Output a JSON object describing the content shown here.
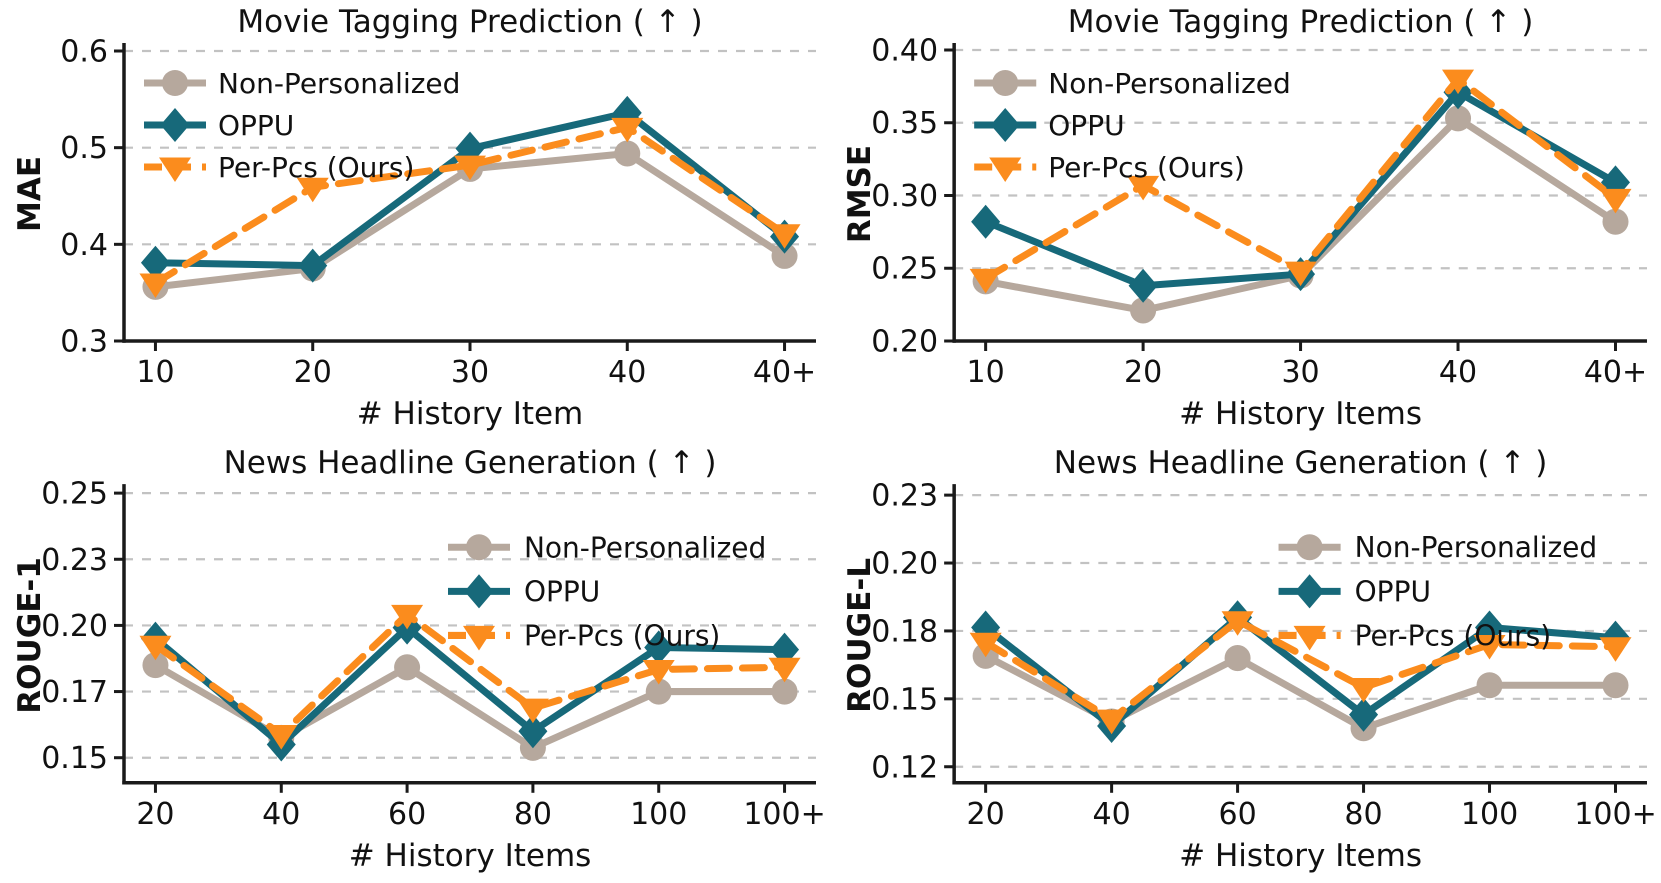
{
  "palette": {
    "non_personalized": "#b6a89d",
    "oppu": "#17697a",
    "per_pcs": "#fb8c1d",
    "grid": "#c2c2c2",
    "axis": "#1a1a1a",
    "text": "#111111",
    "background": "#ffffff"
  },
  "series_meta": [
    {
      "key": "non-personalized",
      "label": "Non-Personalized",
      "marker": "circle",
      "line": "solid",
      "color_key": "non_personalized"
    },
    {
      "key": "oppu",
      "label": "OPPU",
      "marker": "diamond",
      "line": "solid",
      "color_key": "oppu"
    },
    {
      "key": "per-pcs",
      "label": "Per-Pcs (Ours)",
      "marker": "triangle-down",
      "line": "dashed",
      "color_key": "per_pcs"
    }
  ],
  "chart_data": [
    {
      "type": "line",
      "title": "Movie Tagging Prediction ( ↑ )",
      "xlabel": "# History Item",
      "ylabel": "MAE",
      "categories": [
        "10",
        "20",
        "30",
        "40",
        "40+"
      ],
      "ytick_values": [
        0.3,
        0.4,
        0.5,
        0.6
      ],
      "ytick_labels": [
        "0.3",
        "0.4",
        "0.5",
        "0.6"
      ],
      "grid": "horizontal-dashed",
      "legend_position": "upper-left",
      "series": [
        {
          "name": "Non-Personalized",
          "values": [
            0.356,
            0.375,
            0.478,
            0.494,
            0.388
          ]
        },
        {
          "name": "OPPU",
          "values": [
            0.381,
            0.378,
            0.499,
            0.536,
            0.408
          ]
        },
        {
          "name": "Per-Pcs (Ours)",
          "values": [
            0.36,
            0.459,
            0.482,
            0.521,
            0.411
          ]
        }
      ]
    },
    {
      "type": "line",
      "title": "Movie Tagging Prediction ( ↑ )",
      "xlabel": "# History Items",
      "ylabel": "RMSE",
      "categories": [
        "10",
        "20",
        "30",
        "40",
        "40+"
      ],
      "ytick_values": [
        0.2,
        0.25,
        0.3,
        0.35,
        0.4
      ],
      "ytick_labels": [
        "0.20",
        "0.25",
        "0.30",
        "0.35",
        "0.40"
      ],
      "grid": "horizontal-dashed",
      "legend_position": "upper-left",
      "series": [
        {
          "name": "Non-Personalized",
          "values": [
            0.241,
            0.221,
            0.245,
            0.353,
            0.282
          ]
        },
        {
          "name": "OPPU",
          "values": [
            0.282,
            0.238,
            0.246,
            0.371,
            0.309
          ]
        },
        {
          "name": "Per-Pcs (Ours)",
          "values": [
            0.243,
            0.307,
            0.248,
            0.38,
            0.298
          ]
        }
      ]
    },
    {
      "type": "line",
      "title": "News Headline Generation ( ↑ )",
      "xlabel": "# History Items",
      "ylabel": "ROUGE-1",
      "categories": [
        "20",
        "40",
        "60",
        "80",
        "100",
        "100+"
      ],
      "ytick_values": [
        0.15,
        0.17,
        0.2,
        0.23,
        0.25
      ],
      "ytick_labels": [
        "0.15",
        "0.17",
        "0.20",
        "0.23",
        "0.25"
      ],
      "grid": "horizontal-dashed",
      "legend_position": "upper-right",
      "series": [
        {
          "name": "Non-Personalized",
          "values": [
            0.182,
            0.156,
            0.181,
            0.153,
            0.17,
            0.17
          ]
        },
        {
          "name": "OPPU",
          "values": [
            0.194,
            0.154,
            0.199,
            0.158,
            0.19,
            0.189
          ]
        },
        {
          "name": "Per-Pcs (Ours)",
          "values": [
            0.191,
            0.157,
            0.205,
            0.165,
            0.18,
            0.181
          ]
        }
      ]
    },
    {
      "type": "line",
      "title": "News Headline Generation ( ↑ )",
      "xlabel": "# History Items",
      "ylabel": "ROUGE-L",
      "categories": [
        "20",
        "40",
        "60",
        "80",
        "100",
        "100+"
      ],
      "ytick_values": [
        0.12,
        0.15,
        0.18,
        0.2,
        0.23
      ],
      "ytick_labels": [
        "0.12",
        "0.15",
        "0.18",
        "0.20",
        "0.23"
      ],
      "grid": "horizontal-dashed",
      "legend_position": "upper-right",
      "series": [
        {
          "name": "Non-Personalized",
          "values": [
            0.169,
            0.14,
            0.168,
            0.137,
            0.156,
            0.156
          ]
        },
        {
          "name": "OPPU",
          "values": [
            0.181,
            0.138,
            0.184,
            0.143,
            0.181,
            0.177
          ]
        },
        {
          "name": "Per-Pcs (Ours)",
          "values": [
            0.175,
            0.141,
            0.183,
            0.155,
            0.174,
            0.173
          ]
        }
      ]
    }
  ]
}
